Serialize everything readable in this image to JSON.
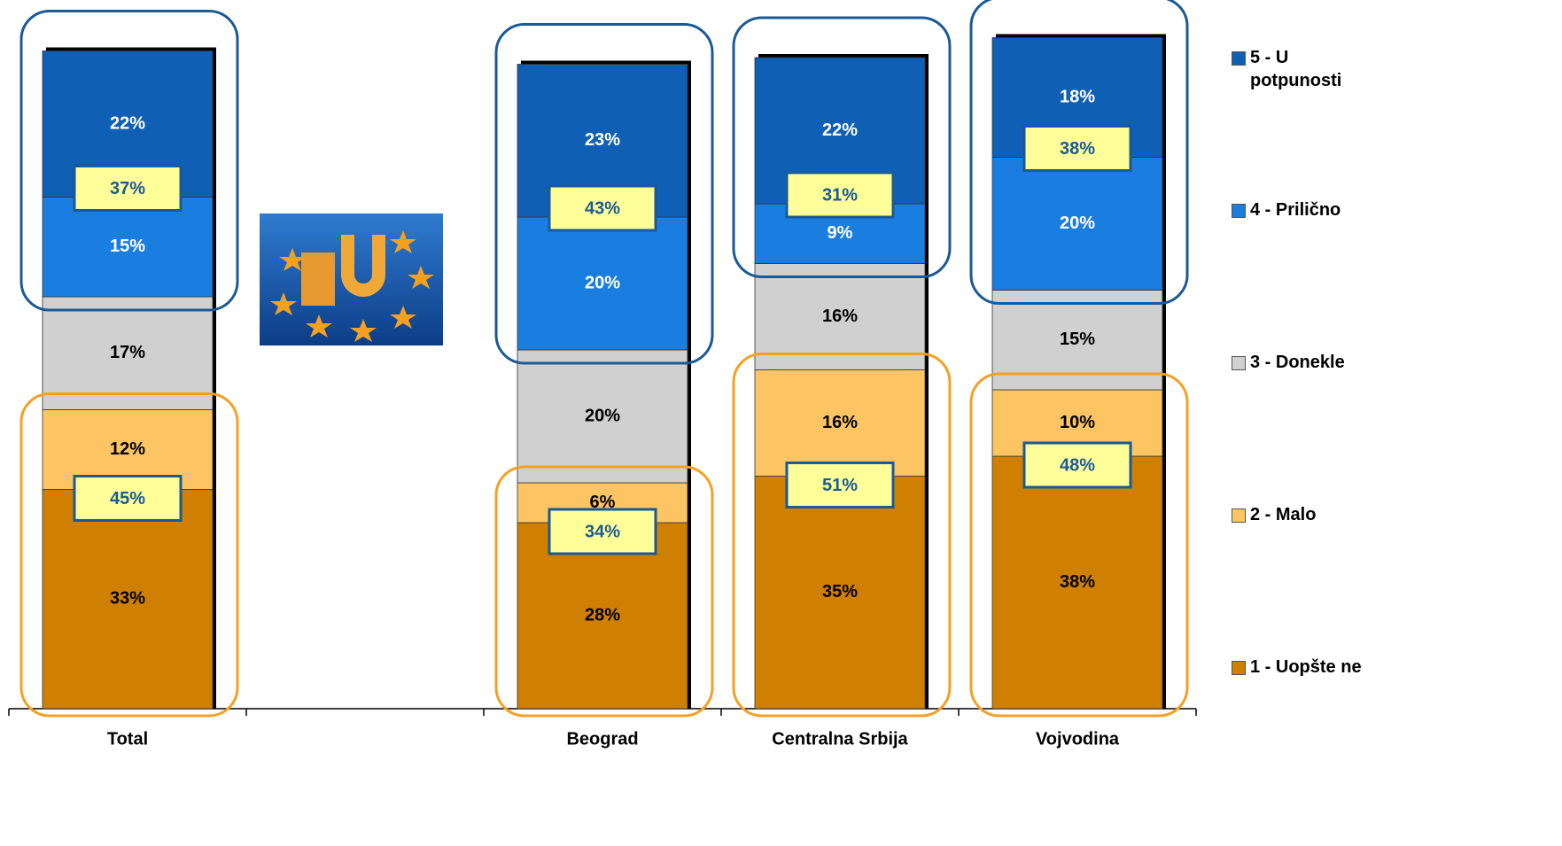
{
  "chart_data": {
    "type": "stacked_bar",
    "categories": [
      "Total",
      null,
      "Beograd",
      "Centralna Srbija",
      "Vojvodina"
    ],
    "series": [
      {
        "name": "1 - Uopšte ne",
        "color": "#d08000",
        "values": [
          33,
          null,
          28,
          35,
          38
        ],
        "value_labels": [
          "33%",
          null,
          "28%",
          "35%",
          "38%"
        ]
      },
      {
        "name": "2 - Malo",
        "color": "#fdc463",
        "values": [
          12,
          null,
          6,
          16,
          10
        ],
        "value_labels": [
          "12%",
          null,
          "6%",
          "16%",
          "10%"
        ]
      },
      {
        "name": "3 - Donekle",
        "color": "#d0d0d0",
        "values": [
          17,
          null,
          20,
          16,
          15
        ],
        "value_labels": [
          "17%",
          null,
          "20%",
          "16%",
          "15%"
        ]
      },
      {
        "name": "4 - Prilično",
        "color": "#1a7ee0",
        "values": [
          15,
          null,
          20,
          9,
          20
        ],
        "value_labels": [
          "15%",
          null,
          "20%",
          "9%",
          "20%"
        ]
      },
      {
        "name": "5 - U potpunosti",
        "color": "#0f5fb5",
        "values": [
          22,
          null,
          23,
          22,
          18
        ],
        "value_labels": [
          "22%",
          null,
          "23%",
          "22%",
          "18%"
        ]
      }
    ],
    "top_two": {
      "values": [
        37,
        null,
        43,
        31,
        38
      ],
      "value_labels": [
        "37%",
        null,
        "43%",
        "31%",
        "38%"
      ]
    },
    "bottom_two": {
      "values": [
        45,
        null,
        34,
        51,
        48
      ],
      "value_labels": [
        "45%",
        null,
        "34%",
        "51%",
        "48%"
      ]
    },
    "ylim": [
      0,
      106
    ],
    "legend": "right"
  }
}
